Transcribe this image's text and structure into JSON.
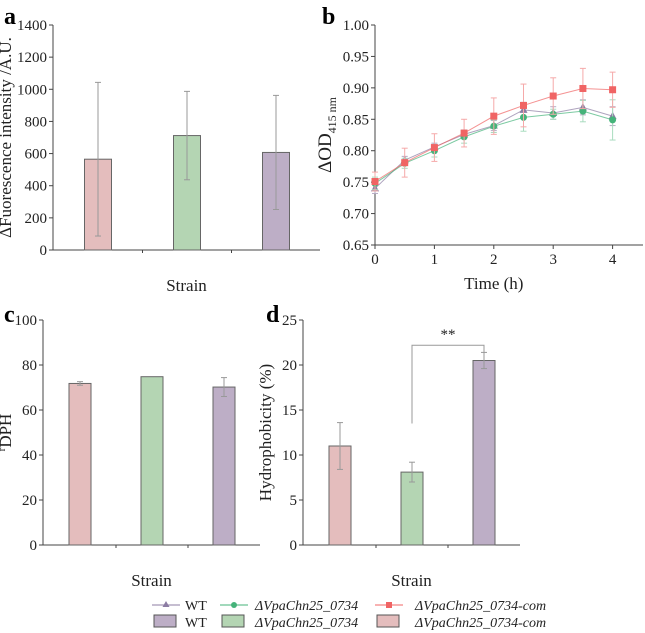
{
  "colors": {
    "bar_com": "#e4bdbd",
    "bar_mut": "#b4d5b3",
    "bar_wt": "#bdaec6",
    "line_com": "#f06464",
    "line_mut": "#45b37a",
    "line_wt": "#8c7ca3",
    "err_bar": "#888888",
    "err_com": "#f5a9a9",
    "err_mut": "#a9dcbf",
    "err_wt": "#b5abc3"
  },
  "chart_data": [
    {
      "panel": "a",
      "type": "bar",
      "xlabel": "Strain",
      "ylabel": "ΔFuorescence intensity /A.U.",
      "ylim": [
        0,
        1400
      ],
      "yticks": [
        0,
        200,
        400,
        600,
        800,
        1000,
        1200,
        1400
      ],
      "categories": [
        "ΔVpaChn25_0734-com",
        "ΔVpaChn25_0734",
        "WT"
      ],
      "values": [
        565,
        712,
        607
      ],
      "errors": [
        478,
        275,
        355
      ]
    },
    {
      "panel": "b",
      "type": "line",
      "xlabel": "Time (h)",
      "ylabel": "ΔOD",
      "ylabel_sub": "415 nm",
      "xlim": [
        0,
        4.5
      ],
      "xticks": [
        0,
        1,
        2,
        3,
        4
      ],
      "ylim": [
        0.65,
        1.0
      ],
      "yticks": [
        "0.65",
        "0.70",
        "0.75",
        "0.80",
        "0.85",
        "0.90",
        "0.95",
        "1.00"
      ],
      "x": [
        0,
        0.5,
        1,
        1.5,
        2,
        2.5,
        3,
        3.5,
        4
      ],
      "series": [
        {
          "name": "WT",
          "marker": "triangle",
          "values": [
            0.74,
            0.785,
            0.806,
            0.826,
            0.84,
            0.865,
            0.86,
            0.869,
            0.855
          ],
          "errors": [
            0.008,
            0.006,
            0.006,
            0.007,
            0.008,
            0.012,
            0.01,
            0.012,
            0.015
          ]
        },
        {
          "name": "ΔVpaChn25_0734",
          "marker": "circle",
          "values": [
            0.748,
            0.78,
            0.8,
            0.822,
            0.839,
            0.853,
            0.858,
            0.863,
            0.849
          ],
          "errors": [
            0.01,
            0.008,
            0.01,
            0.01,
            0.01,
            0.022,
            0.008,
            0.017,
            0.032
          ]
        },
        {
          "name": "ΔVpaChn25_0734-com",
          "marker": "square",
          "values": [
            0.751,
            0.781,
            0.805,
            0.828,
            0.855,
            0.872,
            0.887,
            0.899,
            0.897
          ],
          "errors": [
            0.015,
            0.023,
            0.022,
            0.022,
            0.029,
            0.034,
            0.029,
            0.032,
            0.028
          ]
        }
      ]
    },
    {
      "panel": "c",
      "type": "bar",
      "xlabel": "Strain",
      "ylabel_pre": "r",
      "ylabel": "DPH",
      "ylim": [
        0,
        100
      ],
      "yticks": [
        0,
        20,
        40,
        60,
        80,
        100
      ],
      "categories": [
        "ΔVpaChn25_0734-com",
        "ΔVpaChn25_0734",
        "WT"
      ],
      "values": [
        71.8,
        74.8,
        70.2
      ],
      "errors": [
        0.8,
        0,
        4.2
      ]
    },
    {
      "panel": "d",
      "type": "bar",
      "xlabel": "Strain",
      "ylabel": "Hydrophobicity (%)",
      "ylim": [
        0,
        25
      ],
      "yticks": [
        0,
        5,
        10,
        15,
        20,
        25
      ],
      "categories": [
        "ΔVpaChn25_0734-com",
        "ΔVpaChn25_0734",
        "WT"
      ],
      "values": [
        11.0,
        8.1,
        20.5
      ],
      "errors": [
        2.6,
        1.1,
        0.9
      ],
      "annotation": {
        "text": "**",
        "between": [
          1,
          2
        ],
        "level": 22.2
      }
    }
  ],
  "legend": {
    "lines": [
      "WT",
      "ΔVpaChn25_0734",
      "ΔVpaChn25_0734-com"
    ],
    "bars": [
      "WT",
      "ΔVpaChn25_0734",
      "ΔVpaChn25_0734-com"
    ]
  }
}
